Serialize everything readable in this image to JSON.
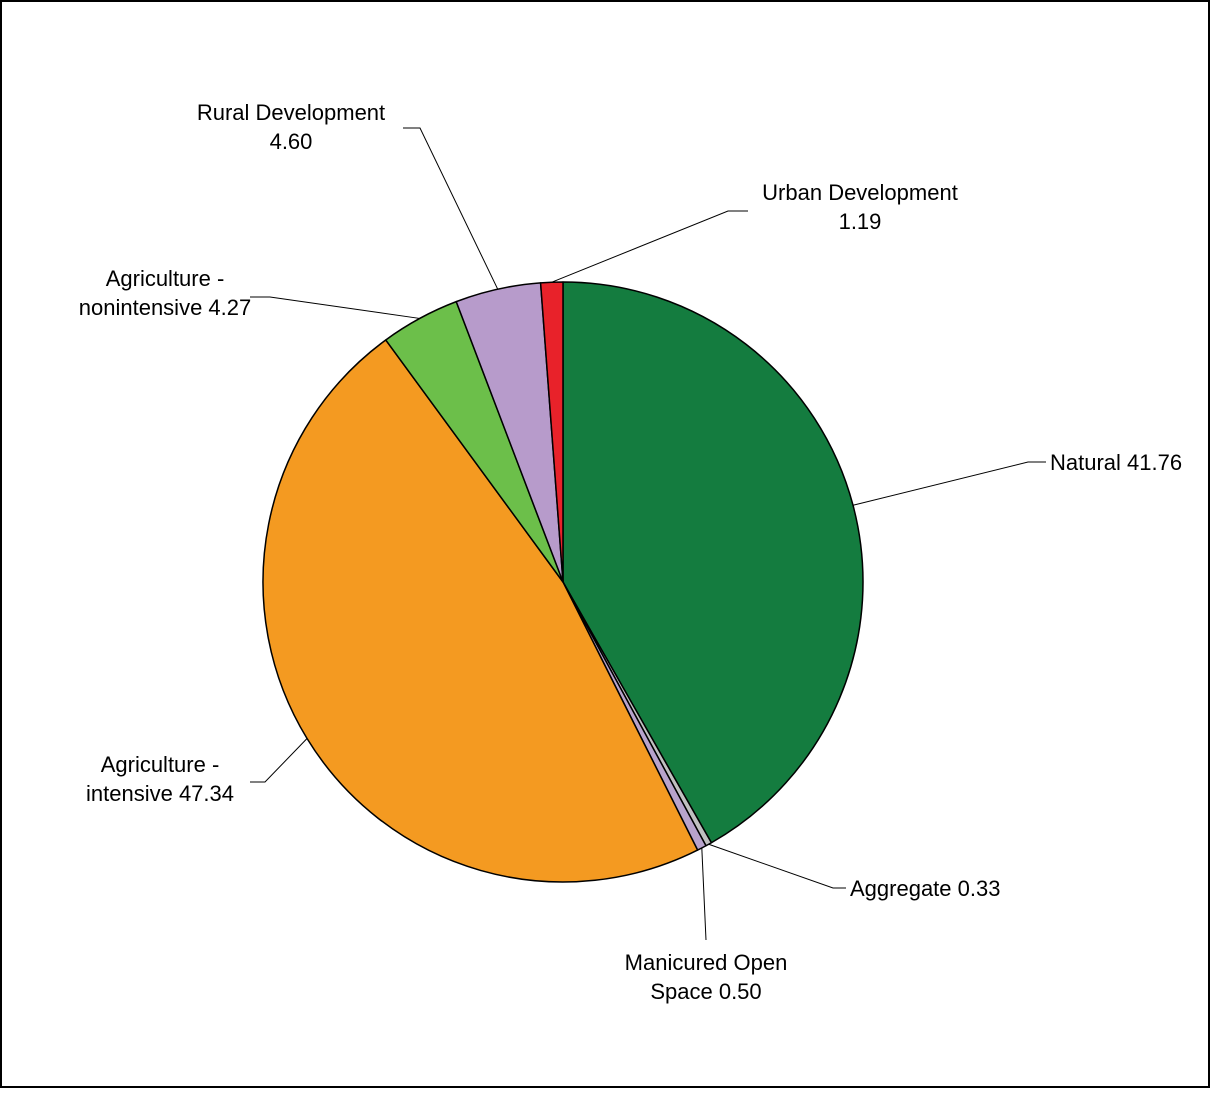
{
  "chart_data": {
    "type": "pie",
    "title": "",
    "start_angle_deg": 0,
    "direction": "clockwise",
    "slices": [
      {
        "label_lines": [
          "Natural 41.76"
        ],
        "value": 41.76,
        "color": "#147C3F"
      },
      {
        "label_lines": [
          "Aggregate 0.33"
        ],
        "value": 0.33,
        "color": "#C0C0C0"
      },
      {
        "label_lines": [
          "Manicured Open",
          "Space 0.50"
        ],
        "value": 0.5,
        "color": "#B8A3CC"
      },
      {
        "label_lines": [
          "Agriculture -",
          "intensive 47.34"
        ],
        "value": 47.34,
        "color": "#F49A21"
      },
      {
        "label_lines": [
          "Agriculture -",
          "nonintensive 4.27"
        ],
        "value": 4.27,
        "color": "#6CBF4A"
      },
      {
        "label_lines": [
          "Rural Development",
          "4.60"
        ],
        "value": 4.6,
        "color": "#B79BCB"
      },
      {
        "label_lines": [
          "Urban Development",
          "1.19"
        ],
        "value": 1.19,
        "color": "#E8222A"
      }
    ],
    "legend": "none",
    "border_color": "#000000",
    "leader_lines": true
  }
}
